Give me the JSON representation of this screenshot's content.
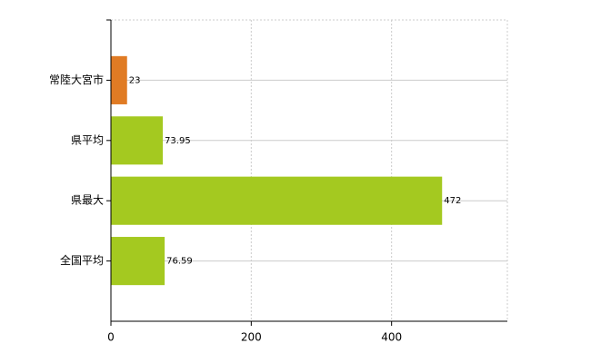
{
  "chart_data": {
    "type": "hbar",
    "categories": [
      "常陸大宮市",
      "県平均",
      "県最大",
      "全国平均"
    ],
    "values": [
      23,
      73.95,
      472,
      76.59
    ],
    "colors": [
      "#e07b24",
      "#a4c920",
      "#a4c920",
      "#a4c920"
    ],
    "xlim": [
      0,
      565
    ],
    "xticks": [
      0,
      200,
      400
    ],
    "grid": true
  }
}
